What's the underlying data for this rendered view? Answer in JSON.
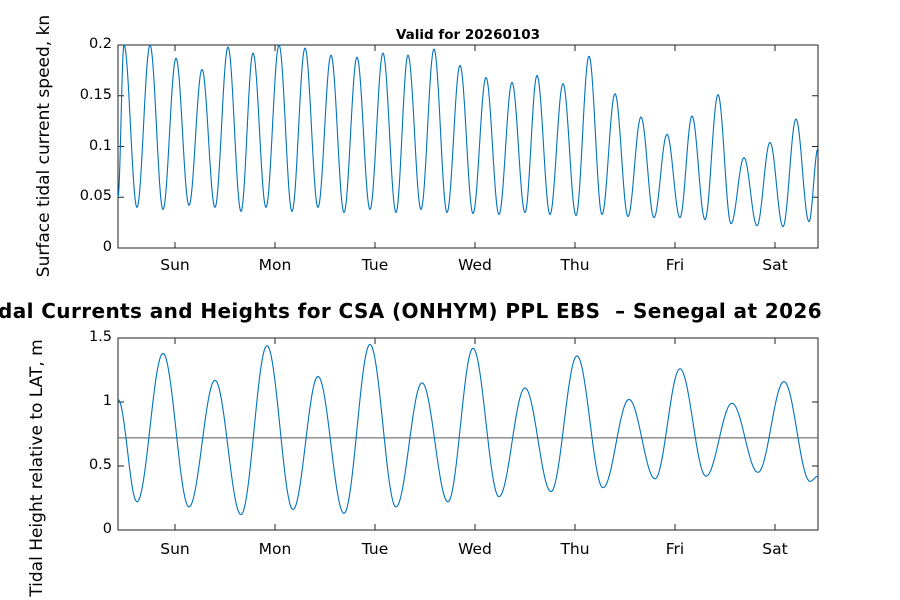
{
  "titles": {
    "top_plot_title": "Valid for 20260103",
    "main_title": "dal Currents and Heights for CSA (ONHYM) PPL EBS  – Senegal at 2026"
  },
  "colors": {
    "line": "#0072BD",
    "axis": "#222222",
    "datum_line": "#555555",
    "background": "#ffffff",
    "text": "#000000"
  },
  "chart_data": [
    {
      "type": "line",
      "title": "Valid for 20260103",
      "ylabel": "Surface tidal current speed, kn",
      "ylim": [
        0,
        0.2
      ],
      "yticks": [
        0,
        0.05,
        0.1,
        0.15,
        0.2
      ],
      "ytick_labels": [
        "0",
        "0.05",
        "0.1",
        "0.15",
        "0.2"
      ],
      "xlim_days": [
        0,
        7
      ],
      "xtick_days": [
        0.57,
        1.57,
        2.57,
        3.57,
        4.57,
        5.57,
        6.57
      ],
      "x_labels": [
        "Sun",
        "Mon",
        "Tue",
        "Wed",
        "Thu",
        "Fri",
        "Sat"
      ],
      "grid": false,
      "legend": null,
      "series_name": "surface-tidal-current-speed-line",
      "series_extrema": [
        [
          0.0,
          0.05
        ],
        [
          0.06,
          0.2
        ],
        [
          0.19,
          0.04
        ],
        [
          0.32,
          0.2
        ],
        [
          0.45,
          0.038
        ],
        [
          0.58,
          0.187
        ],
        [
          0.71,
          0.042
        ],
        [
          0.84,
          0.176
        ],
        [
          0.97,
          0.04
        ],
        [
          1.1,
          0.198
        ],
        [
          1.23,
          0.036
        ],
        [
          1.35,
          0.192
        ],
        [
          1.48,
          0.04
        ],
        [
          1.61,
          0.2
        ],
        [
          1.74,
          0.036
        ],
        [
          1.87,
          0.197
        ],
        [
          2.0,
          0.04
        ],
        [
          2.13,
          0.19
        ],
        [
          2.26,
          0.035
        ],
        [
          2.39,
          0.188
        ],
        [
          2.52,
          0.038
        ],
        [
          2.65,
          0.192
        ],
        [
          2.78,
          0.035
        ],
        [
          2.9,
          0.19
        ],
        [
          3.03,
          0.038
        ],
        [
          3.16,
          0.196
        ],
        [
          3.29,
          0.035
        ],
        [
          3.42,
          0.18
        ],
        [
          3.55,
          0.034
        ],
        [
          3.68,
          0.168
        ],
        [
          3.81,
          0.033
        ],
        [
          3.94,
          0.163
        ],
        [
          4.07,
          0.035
        ],
        [
          4.19,
          0.17
        ],
        [
          4.32,
          0.033
        ],
        [
          4.45,
          0.162
        ],
        [
          4.58,
          0.032
        ],
        [
          4.71,
          0.189
        ],
        [
          4.84,
          0.033
        ],
        [
          4.97,
          0.152
        ],
        [
          5.1,
          0.031
        ],
        [
          5.23,
          0.129
        ],
        [
          5.36,
          0.03
        ],
        [
          5.49,
          0.112
        ],
        [
          5.62,
          0.03
        ],
        [
          5.74,
          0.13
        ],
        [
          5.87,
          0.028
        ],
        [
          6.0,
          0.151
        ],
        [
          6.13,
          0.024
        ],
        [
          6.26,
          0.089
        ],
        [
          6.39,
          0.022
        ],
        [
          6.52,
          0.104
        ],
        [
          6.65,
          0.021
        ],
        [
          6.78,
          0.127
        ],
        [
          6.91,
          0.026
        ],
        [
          7.0,
          0.098
        ]
      ]
    },
    {
      "type": "line",
      "title": "",
      "ylabel": "Tidal Height relative to LAT, m",
      "ylim": [
        0,
        1.5
      ],
      "yticks": [
        0,
        0.5,
        1,
        1.5
      ],
      "ytick_labels": [
        "0",
        "0.5",
        "1",
        "1.5"
      ],
      "xlim_days": [
        0,
        7
      ],
      "xtick_days": [
        0.57,
        1.57,
        2.57,
        3.57,
        4.57,
        5.57,
        6.57
      ],
      "x_labels": [
        "Sun",
        "Mon",
        "Tue",
        "Wed",
        "Thu",
        "Fri",
        "Sat"
      ],
      "grid": false,
      "legend": null,
      "datum_value": 0.72,
      "series_name": "tidal-height-line",
      "series_extrema": [
        [
          0.0,
          1.02
        ],
        [
          0.19,
          0.22
        ],
        [
          0.45,
          1.38
        ],
        [
          0.71,
          0.18
        ],
        [
          0.97,
          1.17
        ],
        [
          1.23,
          0.12
        ],
        [
          1.49,
          1.44
        ],
        [
          1.75,
          0.16
        ],
        [
          2.0,
          1.2
        ],
        [
          2.26,
          0.13
        ],
        [
          2.52,
          1.45
        ],
        [
          2.78,
          0.18
        ],
        [
          3.04,
          1.15
        ],
        [
          3.3,
          0.22
        ],
        [
          3.55,
          1.42
        ],
        [
          3.81,
          0.26
        ],
        [
          4.07,
          1.11
        ],
        [
          4.33,
          0.3
        ],
        [
          4.59,
          1.36
        ],
        [
          4.85,
          0.33
        ],
        [
          5.11,
          1.02
        ],
        [
          5.37,
          0.4
        ],
        [
          5.62,
          1.26
        ],
        [
          5.88,
          0.42
        ],
        [
          6.14,
          0.99
        ],
        [
          6.4,
          0.45
        ],
        [
          6.66,
          1.16
        ],
        [
          6.92,
          0.38
        ],
        [
          7.0,
          0.42
        ]
      ]
    }
  ]
}
